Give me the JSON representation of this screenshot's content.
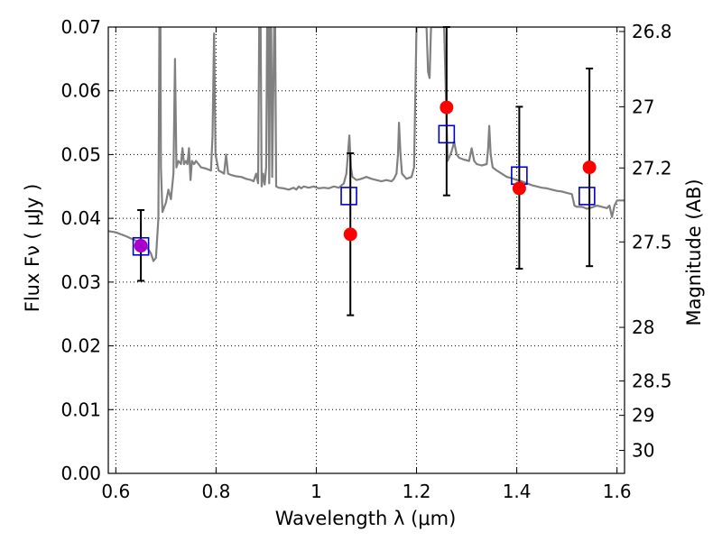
{
  "chart_data": {
    "type": "scatter",
    "title": "",
    "xlabel": "Wavelength  λ (μm)",
    "ylabel": "Flux  Fν  ( μJy )",
    "ylabel_right": "Magnitude (AB)",
    "xlim": [
      0.585,
      1.615
    ],
    "ylim": [
      0.0,
      0.07
    ],
    "grid": true,
    "x_ticks": [
      0.6,
      0.8,
      1.0,
      1.2,
      1.4,
      1.6
    ],
    "x_tick_labels": [
      "0.6",
      "0.8",
      "1",
      "1.2",
      "1.4",
      "1.6"
    ],
    "y_ticks": [
      0.0,
      0.01,
      0.02,
      0.03,
      0.04,
      0.05,
      0.06,
      0.07
    ],
    "y_tick_labels": [
      "0.00",
      "0.01",
      "0.02",
      "0.03",
      "0.04",
      "0.05",
      "0.06",
      "0.07"
    ],
    "right_ticks": [
      {
        "label": "26.8",
        "flux": 0.0693
      },
      {
        "label": "27",
        "flux": 0.0575
      },
      {
        "label": "27.2",
        "flux": 0.0479
      },
      {
        "label": "27.5",
        "flux": 0.0363
      },
      {
        "label": "28",
        "flux": 0.0229
      },
      {
        "label": "28.5",
        "flux": 0.0145
      },
      {
        "label": "29",
        "flux": 0.0091
      },
      {
        "label": "30",
        "flux": 0.0036
      }
    ],
    "series": [
      {
        "kind": "line",
        "color": "#808080",
        "points": [
          [
            0.585,
            0.038
          ],
          [
            0.6,
            0.0378
          ],
          [
            0.62,
            0.0372
          ],
          [
            0.64,
            0.0365
          ],
          [
            0.65,
            0.0362
          ],
          [
            0.66,
            0.0357
          ],
          [
            0.67,
            0.0345
          ],
          [
            0.675,
            0.0333
          ],
          [
            0.68,
            0.0338
          ],
          [
            0.685,
            0.04
          ],
          [
            0.687,
            0.07
          ],
          [
            0.689,
            0.07
          ],
          [
            0.69,
            0.048
          ],
          [
            0.693,
            0.041
          ],
          [
            0.7,
            0.0425
          ],
          [
            0.705,
            0.0445
          ],
          [
            0.71,
            0.043
          ],
          [
            0.715,
            0.047
          ],
          [
            0.718,
            0.065
          ],
          [
            0.721,
            0.048
          ],
          [
            0.725,
            0.049
          ],
          [
            0.73,
            0.0485
          ],
          [
            0.733,
            0.051
          ],
          [
            0.736,
            0.0485
          ],
          [
            0.74,
            0.049
          ],
          [
            0.743,
            0.0485
          ],
          [
            0.746,
            0.051
          ],
          [
            0.749,
            0.046
          ],
          [
            0.752,
            0.049
          ],
          [
            0.756,
            0.0485
          ],
          [
            0.76,
            0.049
          ],
          [
            0.765,
            0.0485
          ],
          [
            0.77,
            0.048
          ],
          [
            0.78,
            0.0478
          ],
          [
            0.79,
            0.0475
          ],
          [
            0.793,
            0.053
          ],
          [
            0.796,
            0.069
          ],
          [
            0.799,
            0.05
          ],
          [
            0.805,
            0.0475
          ],
          [
            0.812,
            0.0472
          ],
          [
            0.816,
            0.047
          ],
          [
            0.82,
            0.05
          ],
          [
            0.824,
            0.047
          ],
          [
            0.83,
            0.0468
          ],
          [
            0.84,
            0.0466
          ],
          [
            0.85,
            0.0465
          ],
          [
            0.86,
            0.0462
          ],
          [
            0.87,
            0.046
          ],
          [
            0.875,
            0.0458
          ],
          [
            0.88,
            0.047
          ],
          [
            0.884,
            0.0455
          ],
          [
            0.886,
            0.07
          ],
          [
            0.889,
            0.07
          ],
          [
            0.891,
            0.045
          ],
          [
            0.894,
            0.047
          ],
          [
            0.897,
            0.0453
          ],
          [
            0.9,
            0.048
          ],
          [
            0.902,
            0.07
          ],
          [
            0.904,
            0.07
          ],
          [
            0.906,
            0.0455
          ],
          [
            0.908,
            0.07
          ],
          [
            0.91,
            0.07
          ],
          [
            0.912,
            0.0465
          ],
          [
            0.916,
            0.07
          ],
          [
            0.918,
            0.07
          ],
          [
            0.92,
            0.045
          ],
          [
            0.925,
            0.0448
          ],
          [
            0.935,
            0.0447
          ],
          [
            0.945,
            0.0445
          ],
          [
            0.955,
            0.0448
          ],
          [
            0.96,
            0.0445
          ],
          [
            0.965,
            0.045
          ],
          [
            0.97,
            0.0447
          ],
          [
            0.975,
            0.045
          ],
          [
            0.985,
            0.0448
          ],
          [
            0.995,
            0.045
          ],
          [
            1.005,
            0.0447
          ],
          [
            1.015,
            0.0448
          ],
          [
            1.025,
            0.0447
          ],
          [
            1.035,
            0.045
          ],
          [
            1.045,
            0.0448
          ],
          [
            1.055,
            0.0455
          ],
          [
            1.06,
            0.047
          ],
          [
            1.063,
            0.05
          ],
          [
            1.066,
            0.053
          ],
          [
            1.069,
            0.048
          ],
          [
            1.072,
            0.0465
          ],
          [
            1.08,
            0.046
          ],
          [
            1.09,
            0.0462
          ],
          [
            1.1,
            0.0465
          ],
          [
            1.11,
            0.0462
          ],
          [
            1.12,
            0.046
          ],
          [
            1.13,
            0.0458
          ],
          [
            1.14,
            0.046
          ],
          [
            1.15,
            0.0458
          ],
          [
            1.155,
            0.0462
          ],
          [
            1.16,
            0.047
          ],
          [
            1.163,
            0.05
          ],
          [
            1.165,
            0.055
          ],
          [
            1.168,
            0.05
          ],
          [
            1.171,
            0.047
          ],
          [
            1.18,
            0.0462
          ],
          [
            1.19,
            0.0465
          ],
          [
            1.195,
            0.048
          ],
          [
            1.2,
            0.07
          ],
          [
            1.205,
            0.07
          ],
          [
            1.21,
            0.07
          ],
          [
            1.215,
            0.07
          ],
          [
            1.22,
            0.07
          ],
          [
            1.223,
            0.063
          ],
          [
            1.226,
            0.062
          ],
          [
            1.229,
            0.07
          ],
          [
            1.24,
            0.07
          ],
          [
            1.25,
            0.07
          ],
          [
            1.255,
            0.07
          ],
          [
            1.262,
            0.049
          ],
          [
            1.27,
            0.0505
          ],
          [
            1.275,
            0.052
          ],
          [
            1.28,
            0.05
          ],
          [
            1.285,
            0.0495
          ],
          [
            1.295,
            0.0492
          ],
          [
            1.305,
            0.049
          ],
          [
            1.31,
            0.051
          ],
          [
            1.315,
            0.049
          ],
          [
            1.32,
            0.0485
          ],
          [
            1.33,
            0.0483
          ],
          [
            1.34,
            0.0485
          ],
          [
            1.343,
            0.051
          ],
          [
            1.345,
            0.0545
          ],
          [
            1.348,
            0.05
          ],
          [
            1.352,
            0.048
          ],
          [
            1.36,
            0.0475
          ],
          [
            1.37,
            0.047
          ],
          [
            1.38,
            0.0465
          ],
          [
            1.39,
            0.0463
          ],
          [
            1.4,
            0.046
          ],
          [
            1.41,
            0.0458
          ],
          [
            1.42,
            0.0455
          ],
          [
            1.43,
            0.0452
          ],
          [
            1.44,
            0.045
          ],
          [
            1.45,
            0.0448
          ],
          [
            1.46,
            0.0447
          ],
          [
            1.47,
            0.0445
          ],
          [
            1.48,
            0.0443
          ],
          [
            1.49,
            0.0442
          ],
          [
            1.5,
            0.044
          ],
          [
            1.51,
            0.0438
          ],
          [
            1.515,
            0.042
          ],
          [
            1.52,
            0.0418
          ],
          [
            1.53,
            0.0418
          ],
          [
            1.54,
            0.0415
          ],
          [
            1.55,
            0.0417
          ],
          [
            1.56,
            0.042
          ],
          [
            1.57,
            0.0418
          ],
          [
            1.58,
            0.0416
          ],
          [
            1.585,
            0.042
          ],
          [
            1.59,
            0.0402
          ],
          [
            1.595,
            0.042
          ],
          [
            1.6,
            0.0428
          ],
          [
            1.61,
            0.0428
          ],
          [
            1.615,
            0.0428
          ]
        ]
      },
      {
        "kind": "squares",
        "color": "#0000cc",
        "points": [
          [
            0.65,
            0.0356
          ],
          [
            1.065,
            0.0435
          ],
          [
            1.26,
            0.0532
          ],
          [
            1.405,
            0.0467
          ],
          [
            1.54,
            0.0435
          ]
        ]
      },
      {
        "kind": "circles",
        "color": "#ff0000",
        "points": [
          {
            "x": 0.65,
            "y": 0.0357,
            "err": [
              0.0302,
              0.0413
            ]
          },
          {
            "x": 1.068,
            "y": 0.0375,
            "err": [
              0.0248,
              0.0502
            ]
          },
          {
            "x": 1.26,
            "y": 0.0574,
            "err": [
              0.0436,
              0.07
            ]
          },
          {
            "x": 1.405,
            "y": 0.0447,
            "err": [
              0.0321,
              0.0575
            ]
          },
          {
            "x": 1.545,
            "y": 0.048,
            "err": [
              0.0325,
              0.0635
            ]
          }
        ]
      }
    ]
  }
}
